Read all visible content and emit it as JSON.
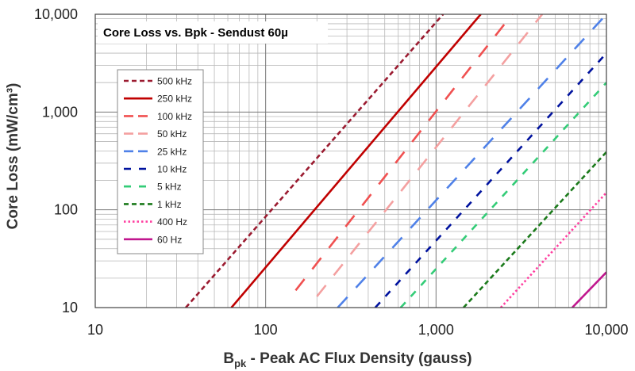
{
  "chart_data": {
    "type": "line",
    "title": "Core Loss vs. Bpk - Sendust  60µ",
    "xlabel": {
      "main": "B",
      "sub": "pk",
      "rest": " - Peak AC Flux Density (gauss)"
    },
    "ylabel": "Core Loss (mW/cm³)",
    "x_scale": "log",
    "y_scale": "log",
    "xlim": [
      10,
      10000
    ],
    "ylim": [
      10,
      10000
    ],
    "x_ticks": [
      10,
      100,
      1000,
      10000
    ],
    "x_tick_labels": [
      "10",
      "100",
      "1,000",
      "10,000"
    ],
    "y_ticks": [
      10,
      100,
      1000,
      10000
    ],
    "y_tick_labels": [
      "10",
      "100",
      "1,000",
      "10,000"
    ],
    "grid": true,
    "legend_position": "left",
    "series": [
      {
        "name": "500 kHz",
        "color": "#9b1b30",
        "style": "short-dash",
        "x": [
          34,
          1100
        ],
        "y": [
          10,
          10000
        ]
      },
      {
        "name": "250 kHz",
        "color": "#c00000",
        "style": "solid",
        "x": [
          63,
          1830
        ],
        "y": [
          10,
          10000
        ]
      },
      {
        "name": "100 kHz",
        "color": "#f05050",
        "style": "long-dash",
        "x": [
          150,
          2800
        ],
        "y": [
          15,
          10000
        ]
      },
      {
        "name": "50 kHz",
        "color": "#f4a0a0",
        "style": "long-dash",
        "x": [
          200,
          4200
        ],
        "y": [
          13,
          10000
        ]
      },
      {
        "name": "25 kHz",
        "color": "#4f81e8",
        "style": "long-dash",
        "x": [
          265,
          10000
        ],
        "y": [
          10,
          10000
        ]
      },
      {
        "name": "10 kHz",
        "color": "#00129e",
        "style": "medium-dash",
        "x": [
          440,
          10000
        ],
        "y": [
          10,
          4000
        ]
      },
      {
        "name": "5 kHz",
        "color": "#33cc77",
        "style": "medium-dash",
        "x": [
          620,
          10000
        ],
        "y": [
          10,
          2000
        ]
      },
      {
        "name": "1 kHz",
        "color": "#1b7a1b",
        "style": "short-dash",
        "x": [
          1450,
          10000
        ],
        "y": [
          10,
          390
        ]
      },
      {
        "name": "400 Hz",
        "color": "#ff3fa0",
        "style": "dotted",
        "x": [
          2400,
          10000
        ],
        "y": [
          10,
          150
        ]
      },
      {
        "name": "60 Hz",
        "color": "#c0168e",
        "style": "solid",
        "x": [
          6300,
          10000
        ],
        "y": [
          10,
          23
        ]
      }
    ]
  }
}
